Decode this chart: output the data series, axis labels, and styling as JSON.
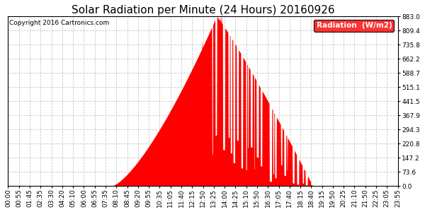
{
  "title": "Solar Radiation per Minute (24 Hours) 20160926",
  "copyright": "Copyright 2016 Cartronics.com",
  "legend_label": "Radiation  (W/m2)",
  "yticks": [
    0.0,
    73.6,
    147.2,
    220.8,
    294.3,
    367.9,
    441.5,
    515.1,
    588.7,
    662.2,
    735.8,
    809.4,
    883.0
  ],
  "ymax": 883.0,
  "ymin": 0.0,
  "bar_color": "#FF0000",
  "background_color": "#FFFFFF",
  "plot_bg_color": "#FFFFFF",
  "grid_color": "#BBBBBB",
  "title_fontsize": 11,
  "copyright_fontsize": 6.5,
  "tick_fontsize": 6.5,
  "xtick_labels": [
    "00:00",
    "00:55",
    "01:45",
    "02:35",
    "03:30",
    "04:20",
    "05:10",
    "06:00",
    "06:55",
    "07:35",
    "08:10",
    "08:45",
    "09:20",
    "09:55",
    "10:35",
    "11:05",
    "11:40",
    "12:15",
    "12:50",
    "13:25",
    "14:00",
    "14:25",
    "15:10",
    "15:50",
    "16:30",
    "17:05",
    "17:40",
    "18:15",
    "18:40",
    "19:15",
    "19:50",
    "20:25",
    "21:10",
    "21:50",
    "22:25",
    "23:05",
    "23:55"
  ],
  "num_minutes": 1440,
  "sunrise_min": 383,
  "sunset_min": 1125,
  "peak_min": 770,
  "peak_val": 883.0,
  "seed": 12345
}
